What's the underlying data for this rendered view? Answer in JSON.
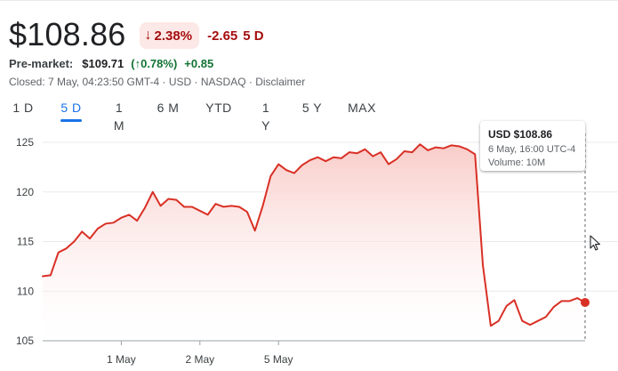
{
  "quote": {
    "price": "$108.86",
    "change_pct": "2.38%",
    "change_abs": "-2.65",
    "change_period": "5 D",
    "direction_icon": "arrow-down-icon",
    "down_color": "#a50e0e",
    "up_color": "#137333"
  },
  "premarket": {
    "label": "Pre-market:",
    "price": "$109.71",
    "pct": "(↑0.78%)",
    "abs": "+0.85"
  },
  "status": {
    "closed_text": "Closed: 7 May, 04:23:50 GMT-4 · USD · NASDAQ · Disclaimer"
  },
  "tabs": [
    {
      "label": "1 D",
      "active": false
    },
    {
      "label": "5 D",
      "active": true
    },
    {
      "label": "1 M",
      "active": false
    },
    {
      "label": "6 M",
      "active": false
    },
    {
      "label": "YTD",
      "active": false
    },
    {
      "label": "1 Y",
      "active": false
    },
    {
      "label": "5 Y",
      "active": false
    },
    {
      "label": "MAX",
      "active": false
    }
  ],
  "tooltip": {
    "price": "USD $108.86",
    "date": "6 May, 16:00 UTC-4",
    "volume": "Volume: 10M"
  },
  "chart_data": {
    "type": "area",
    "title": "",
    "xlabel": "",
    "ylabel": "",
    "ylim": [
      105,
      125
    ],
    "y_ticks": [
      105,
      110,
      115,
      120,
      125
    ],
    "x_tick_labels": [
      "1 May",
      "2 May",
      "5 May"
    ],
    "x_tick_index": [
      10,
      20,
      30
    ],
    "grid": true,
    "line_color": "#d93025",
    "fill_color": "#fce8e6",
    "series": [
      {
        "values": [
          111.5,
          111.6,
          113.9,
          114.3,
          115.0,
          116.0,
          115.3,
          116.3,
          116.8,
          116.9,
          117.4,
          117.7,
          117.1,
          118.4,
          120.0,
          118.6,
          119.3,
          119.2,
          118.5,
          118.5,
          118.1,
          117.7,
          118.8,
          118.5,
          118.6,
          118.5,
          118.0,
          116.1,
          118.6,
          121.6,
          122.8,
          122.2,
          121.9,
          122.7,
          123.2,
          123.5,
          123.1,
          123.5,
          123.4,
          124.0,
          123.9,
          124.3,
          123.6,
          124.0,
          122.8,
          123.3,
          124.1,
          124.0,
          124.8,
          124.2,
          124.5,
          124.4,
          124.7,
          124.6,
          124.3,
          123.8,
          112.6,
          106.5,
          107.0,
          108.5,
          109.1,
          107.0,
          106.6,
          107.0,
          107.4,
          108.4,
          109.0,
          109.0,
          109.3,
          108.86
        ]
      }
    ]
  }
}
